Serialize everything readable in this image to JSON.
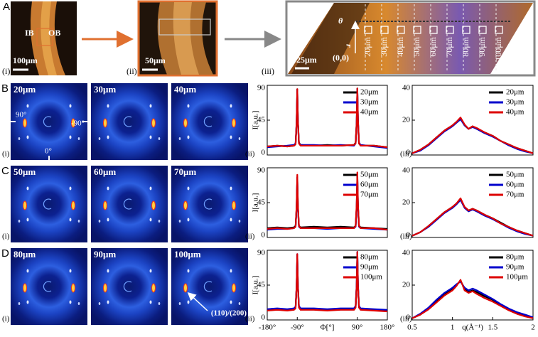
{
  "panel_a": {
    "letter": "A",
    "images": [
      {
        "label": "(i)",
        "scale": "100μm",
        "annotations": [
          "IB",
          "OB"
        ]
      },
      {
        "label": "(ii)",
        "scale": "50μm"
      },
      {
        "label": "(iii)",
        "scale": "25μm",
        "axis_labels": [
          "θ",
          "r",
          "(0,0)"
        ],
        "positions": [
          "20μm",
          "30μm",
          "40μm",
          "50μm",
          "60μm",
          "70μm",
          "80μm",
          "90μm",
          "100μm"
        ]
      }
    ]
  },
  "rows": [
    {
      "letter": "B",
      "positions": [
        "20μm",
        "30μm",
        "40μm"
      ],
      "sub_labels": [
        "(i)",
        "(ii)",
        "(iii)"
      ],
      "annotations": [
        "90°",
        "-90°",
        "0°"
      ]
    },
    {
      "letter": "C",
      "positions": [
        "50μm",
        "60μm",
        "70μm"
      ],
      "sub_labels": [
        "(i)",
        "(ii)",
        "(iii)"
      ]
    },
    {
      "letter": "D",
      "positions": [
        "80μm",
        "90μm",
        "100μm"
      ],
      "sub_labels": [
        "(i)",
        "(ii)",
        "(iii)"
      ],
      "annotations": [
        "(110)/(200)"
      ]
    }
  ],
  "chart_data": [
    {
      "type": "line",
      "ylabel": "I[a.u.]",
      "legend": "upper right",
      "x": [
        -180,
        -150,
        -120,
        -100,
        -95,
        -92,
        -90,
        -88,
        -85,
        -80,
        -40,
        0,
        40,
        80,
        85,
        88,
        90,
        92,
        95,
        100,
        140,
        180
      ],
      "xlim": [
        -180,
        180
      ],
      "ylim": [
        0,
        90
      ],
      "yticks": [
        0,
        45,
        90
      ],
      "series": [
        {
          "name": "20μm",
          "color": "#000000",
          "values": [
            11,
            12,
            11,
            12,
            14,
            40,
            85,
            45,
            16,
            13,
            12,
            13,
            12,
            13,
            16,
            42,
            86,
            44,
            15,
            12,
            12,
            10
          ]
        },
        {
          "name": "30μm",
          "color": "#0000cc",
          "values": [
            10,
            11,
            12,
            13,
            15,
            42,
            84,
            44,
            15,
            13,
            13,
            12,
            13,
            12,
            15,
            40,
            85,
            46,
            16,
            13,
            11,
            9
          ]
        },
        {
          "name": "40μm",
          "color": "#dd0000",
          "values": [
            11,
            12,
            11,
            12,
            14,
            41,
            85,
            43,
            15,
            12,
            12,
            12,
            12,
            13,
            15,
            41,
            86,
            45,
            15,
            12,
            12,
            10
          ]
        }
      ]
    },
    {
      "type": "line",
      "legend": "upper right",
      "x": [
        0.5,
        0.6,
        0.7,
        0.8,
        0.9,
        1.0,
        1.05,
        1.1,
        1.15,
        1.2,
        1.25,
        1.3,
        1.4,
        1.5,
        1.6,
        1.7,
        1.8,
        1.9,
        2.0
      ],
      "xlim": [
        0.5,
        2
      ],
      "ylim": [
        0,
        40
      ],
      "yticks": [
        0,
        20,
        40
      ],
      "series": [
        {
          "name": "20μm",
          "color": "#000000",
          "values": [
            1,
            3,
            6,
            10,
            14,
            17,
            19,
            21,
            17,
            15,
            16.5,
            15,
            13,
            11,
            8,
            6,
            4,
            2.5,
            1
          ]
        },
        {
          "name": "30μm",
          "color": "#0000cc",
          "values": [
            1,
            2.5,
            5.5,
            9.5,
            13.5,
            16.5,
            18.5,
            20.5,
            17,
            15,
            16,
            15,
            12.5,
            10.5,
            8,
            5.5,
            3.5,
            2,
            1
          ]
        },
        {
          "name": "40μm",
          "color": "#dd0000",
          "values": [
            1,
            3,
            6,
            10,
            14,
            17,
            19,
            21.5,
            17.5,
            15,
            16.5,
            15.5,
            13,
            11,
            8,
            6,
            4,
            2.5,
            1
          ]
        }
      ]
    },
    {
      "type": "line",
      "ylabel": "I[a.u.]",
      "legend": "upper right",
      "x": [
        -180,
        -150,
        -120,
        -100,
        -95,
        -92,
        -90,
        -88,
        -85,
        -80,
        -40,
        0,
        40,
        80,
        85,
        88,
        90,
        92,
        95,
        100,
        140,
        180
      ],
      "xlim": [
        -180,
        180
      ],
      "ylim": [
        0,
        90
      ],
      "yticks": [
        0,
        45,
        90
      ],
      "series": [
        {
          "name": "50μm",
          "color": "#000000",
          "values": [
            12,
            13,
            12,
            13,
            15,
            38,
            78,
            40,
            15,
            13,
            14,
            13,
            14,
            13,
            15,
            39,
            80,
            41,
            15,
            13,
            12,
            11
          ]
        },
        {
          "name": "60μm",
          "color": "#0000cc",
          "values": [
            10,
            11,
            11,
            12,
            14,
            37,
            77,
            39,
            14,
            12,
            12,
            11,
            12,
            12,
            14,
            38,
            79,
            40,
            14,
            12,
            11,
            10
          ]
        },
        {
          "name": "70μm",
          "color": "#dd0000",
          "values": [
            11,
            12,
            11,
            12,
            14,
            40,
            81,
            42,
            15,
            12,
            12,
            12,
            12,
            12,
            15,
            42,
            84,
            43,
            15,
            12,
            12,
            10
          ]
        }
      ]
    },
    {
      "type": "line",
      "legend": "upper right",
      "x": [
        0.5,
        0.6,
        0.7,
        0.8,
        0.9,
        1.0,
        1.05,
        1.1,
        1.15,
        1.2,
        1.25,
        1.3,
        1.4,
        1.5,
        1.6,
        1.7,
        1.8,
        1.9,
        2.0
      ],
      "xlim": [
        0.5,
        2
      ],
      "ylim": [
        0,
        40
      ],
      "yticks": [
        0,
        20,
        40
      ],
      "series": [
        {
          "name": "50μm",
          "color": "#000000",
          "values": [
            1,
            3,
            6.5,
            10.5,
            14.5,
            17.5,
            19.5,
            22,
            17.5,
            15.5,
            16.5,
            15.5,
            13,
            11,
            8.5,
            6,
            4,
            2.5,
            1
          ]
        },
        {
          "name": "60μm",
          "color": "#0000cc",
          "values": [
            1,
            3,
            6,
            10,
            14,
            17,
            19,
            21.5,
            17,
            15,
            16,
            15,
            12.5,
            10.5,
            8,
            5.5,
            3.5,
            2,
            1
          ]
        },
        {
          "name": "70μm",
          "color": "#dd0000",
          "values": [
            1,
            3,
            6.5,
            10.5,
            14.5,
            17.5,
            19.5,
            22.5,
            17.5,
            15.5,
            16.5,
            15.5,
            13,
            11,
            8,
            6,
            4,
            2.5,
            1
          ]
        }
      ]
    },
    {
      "type": "line",
      "ylabel": "I[a.u.]",
      "xlabel": "Φ[°]",
      "legend": "upper right",
      "x": [
        -180,
        -150,
        -120,
        -100,
        -95,
        -92,
        -90,
        -88,
        -85,
        -80,
        -40,
        0,
        40,
        80,
        85,
        88,
        90,
        92,
        95,
        100,
        140,
        180
      ],
      "xlim": [
        -180,
        180
      ],
      "ylim": [
        0,
        90
      ],
      "yticks": [
        0,
        45,
        90
      ],
      "xticks": [
        {
          "value": -180,
          "label": "-180°"
        },
        {
          "value": -90,
          "label": "-90°"
        },
        {
          "value": 90,
          "label": "90°"
        },
        {
          "value": 180,
          "label": "180°"
        }
      ],
      "series": [
        {
          "name": "80μm",
          "color": "#000000",
          "values": [
            13,
            14,
            13,
            14,
            16,
            42,
            84,
            44,
            17,
            14,
            14,
            13,
            14,
            14,
            17,
            44,
            87,
            45,
            17,
            14,
            13,
            12
          ]
        },
        {
          "name": "90μm",
          "color": "#0000cc",
          "values": [
            14,
            15,
            14,
            15,
            17,
            43,
            85,
            45,
            18,
            15,
            15,
            14,
            15,
            15,
            18,
            45,
            88,
            46,
            18,
            15,
            14,
            13
          ]
        },
        {
          "name": "100μm",
          "color": "#dd0000",
          "values": [
            12,
            13,
            12,
            13,
            15,
            42,
            85,
            43,
            16,
            13,
            13,
            12,
            13,
            13,
            16,
            43,
            88,
            44,
            16,
            13,
            12,
            11
          ]
        }
      ]
    },
    {
      "type": "line",
      "xlabel": "q(Å⁻¹)",
      "legend": "upper right",
      "x": [
        0.5,
        0.6,
        0.7,
        0.8,
        0.9,
        1.0,
        1.05,
        1.1,
        1.15,
        1.2,
        1.25,
        1.3,
        1.4,
        1.5,
        1.6,
        1.7,
        1.8,
        1.9,
        2.0
      ],
      "xlim": [
        0.5,
        2
      ],
      "ylim": [
        0,
        40
      ],
      "yticks": [
        0,
        20,
        40
      ],
      "xticks": [
        0.5,
        1,
        1.5,
        2
      ],
      "series": [
        {
          "name": "80μm",
          "color": "#000000",
          "values": [
            1,
            3,
            6.5,
            11,
            15,
            18,
            20,
            22.5,
            18,
            16,
            17,
            16,
            13.5,
            11.5,
            8.5,
            6,
            4,
            2.5,
            1
          ]
        },
        {
          "name": "90μm",
          "color": "#0000cc",
          "values": [
            1,
            3.5,
            7,
            11.5,
            15.5,
            18.5,
            20.5,
            22,
            18.5,
            17,
            18,
            17,
            14.5,
            12,
            9,
            6.5,
            4.5,
            3,
            1.5
          ]
        },
        {
          "name": "100μm",
          "color": "#dd0000",
          "values": [
            1,
            3,
            6,
            10,
            14,
            17,
            19.5,
            23,
            17,
            15.5,
            16.5,
            15,
            12.5,
            10.5,
            8,
            5.5,
            3.5,
            2,
            1
          ]
        }
      ]
    }
  ]
}
